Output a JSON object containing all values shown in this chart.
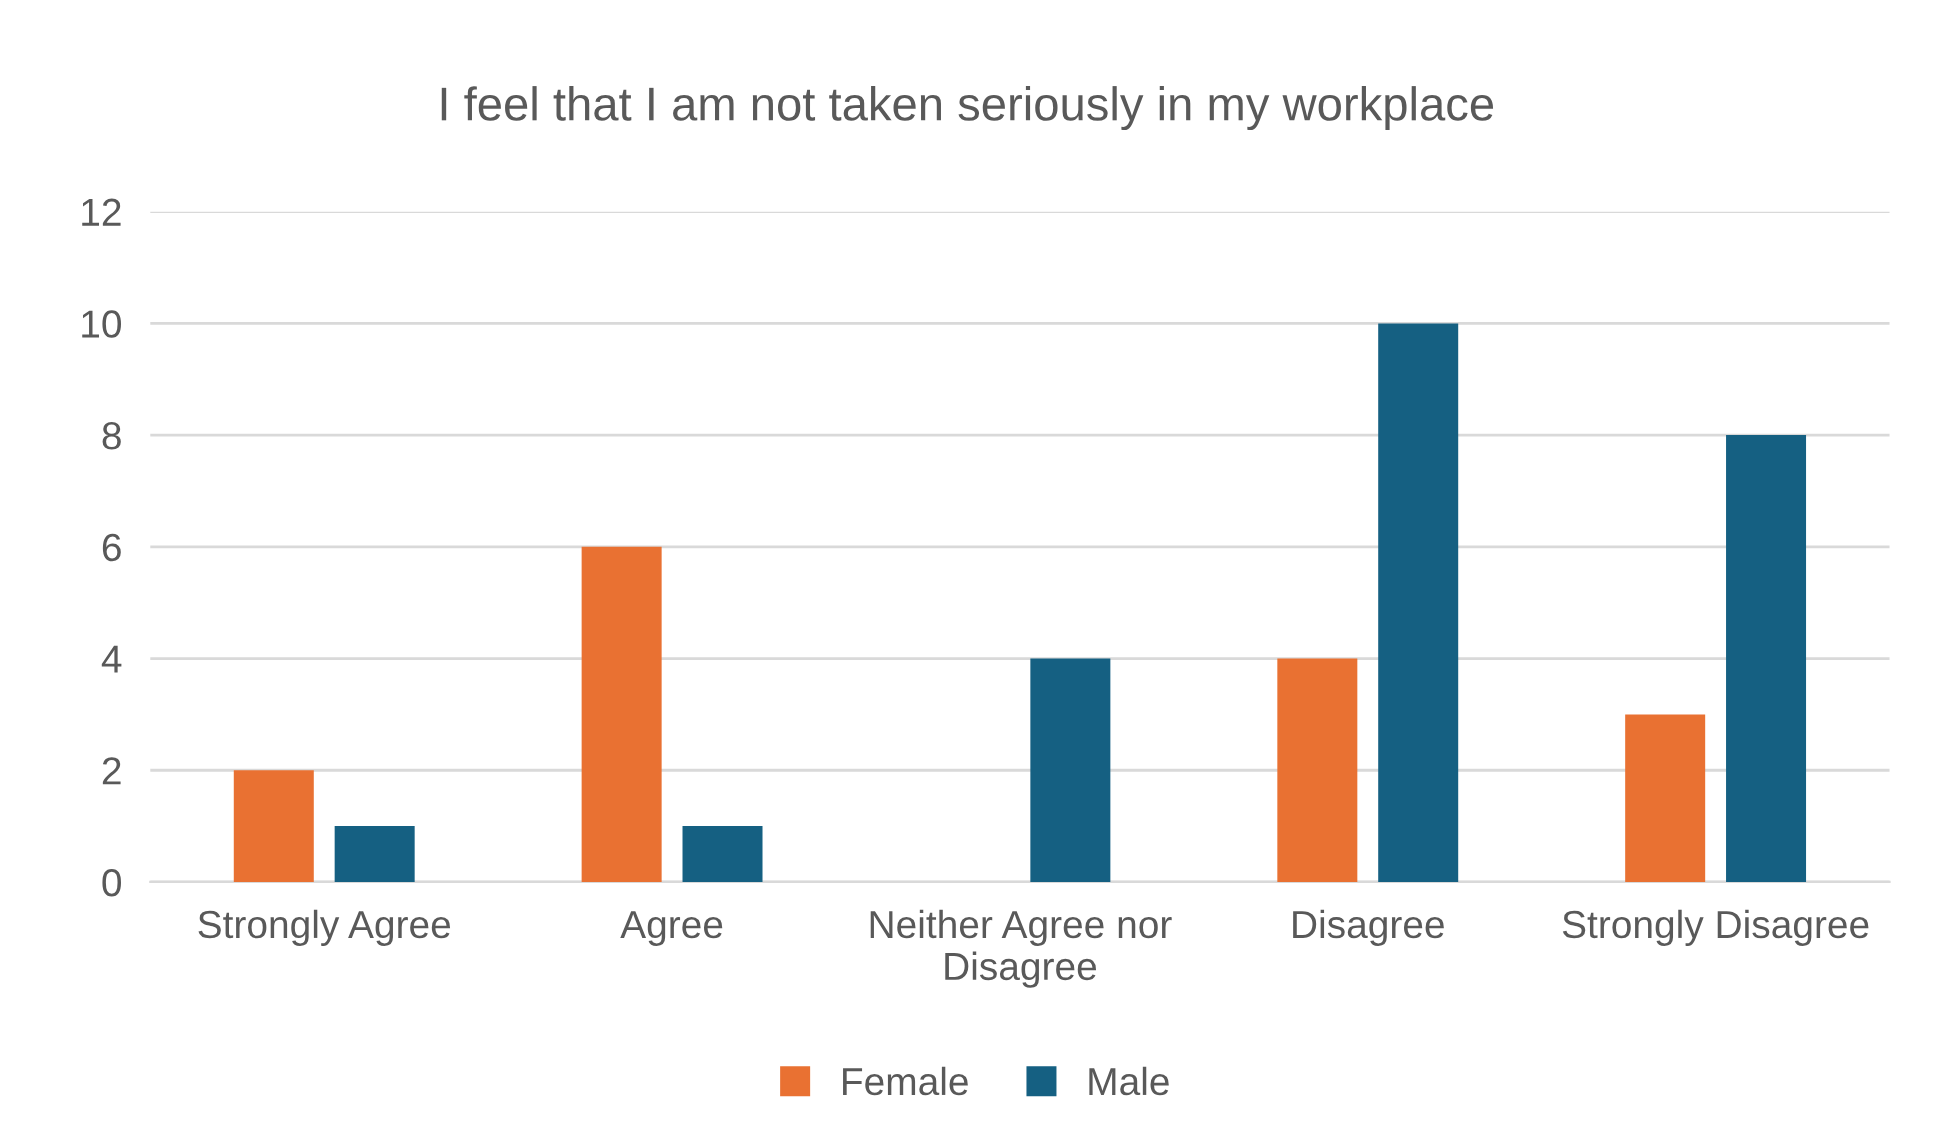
{
  "chart_data": {
    "type": "bar",
    "title": "I feel that I am not taken seriously in my workplace",
    "categories": [
      "Strongly Agree",
      "Agree",
      "Neither Agree nor\nDisagree",
      "Disagree",
      "Strongly Disagree"
    ],
    "series": [
      {
        "name": "Female",
        "color": "#e97132",
        "values": [
          2,
          6,
          0,
          4,
          3
        ]
      },
      {
        "name": "Male",
        "color": "#156082",
        "values": [
          1,
          1,
          4,
          10,
          8
        ]
      }
    ],
    "ylim": [
      0,
      12
    ],
    "yticks": [
      0,
      2,
      4,
      6,
      8,
      10,
      12
    ],
    "grid": "y",
    "legend": "bottom"
  }
}
